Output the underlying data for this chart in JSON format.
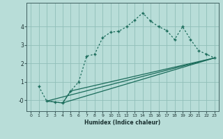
{
  "title": "",
  "xlabel": "Humidex (Indice chaleur)",
  "ylabel": "",
  "background_color": "#b8ddd8",
  "grid_color": "#90bfb8",
  "line_color": "#1a6b5a",
  "xlim": [
    -0.5,
    23.5
  ],
  "ylim": [
    -0.6,
    5.3
  ],
  "yticks": [
    0,
    1,
    2,
    3,
    4
  ],
  "ytick_labels": [
    "-0",
    "1",
    "2",
    "3",
    "4"
  ],
  "xticks": [
    0,
    1,
    2,
    3,
    4,
    5,
    6,
    7,
    8,
    9,
    10,
    11,
    12,
    13,
    14,
    15,
    16,
    17,
    18,
    19,
    20,
    21,
    22,
    23
  ],
  "curve1_x": [
    1,
    2,
    3,
    4,
    5,
    6,
    7,
    8,
    9,
    10,
    11,
    12,
    13,
    14,
    15,
    16,
    17,
    18,
    19,
    20,
    21,
    22,
    23
  ],
  "curve1_y": [
    0.75,
    -0.05,
    -0.1,
    -0.15,
    0.5,
    1.0,
    2.4,
    2.5,
    3.4,
    3.7,
    3.75,
    4.0,
    4.35,
    4.75,
    4.3,
    4.0,
    3.8,
    3.3,
    4.0,
    3.3,
    2.7,
    2.5,
    2.3
  ],
  "curve2_x": [
    2,
    3,
    4,
    5,
    23
  ],
  "curve2_y": [
    -0.05,
    -0.1,
    -0.15,
    0.5,
    2.3
  ],
  "curve3_x": [
    2,
    23
  ],
  "curve3_y": [
    -0.05,
    2.3
  ],
  "curve4_x": [
    4,
    23
  ],
  "curve4_y": [
    -0.15,
    2.3
  ]
}
